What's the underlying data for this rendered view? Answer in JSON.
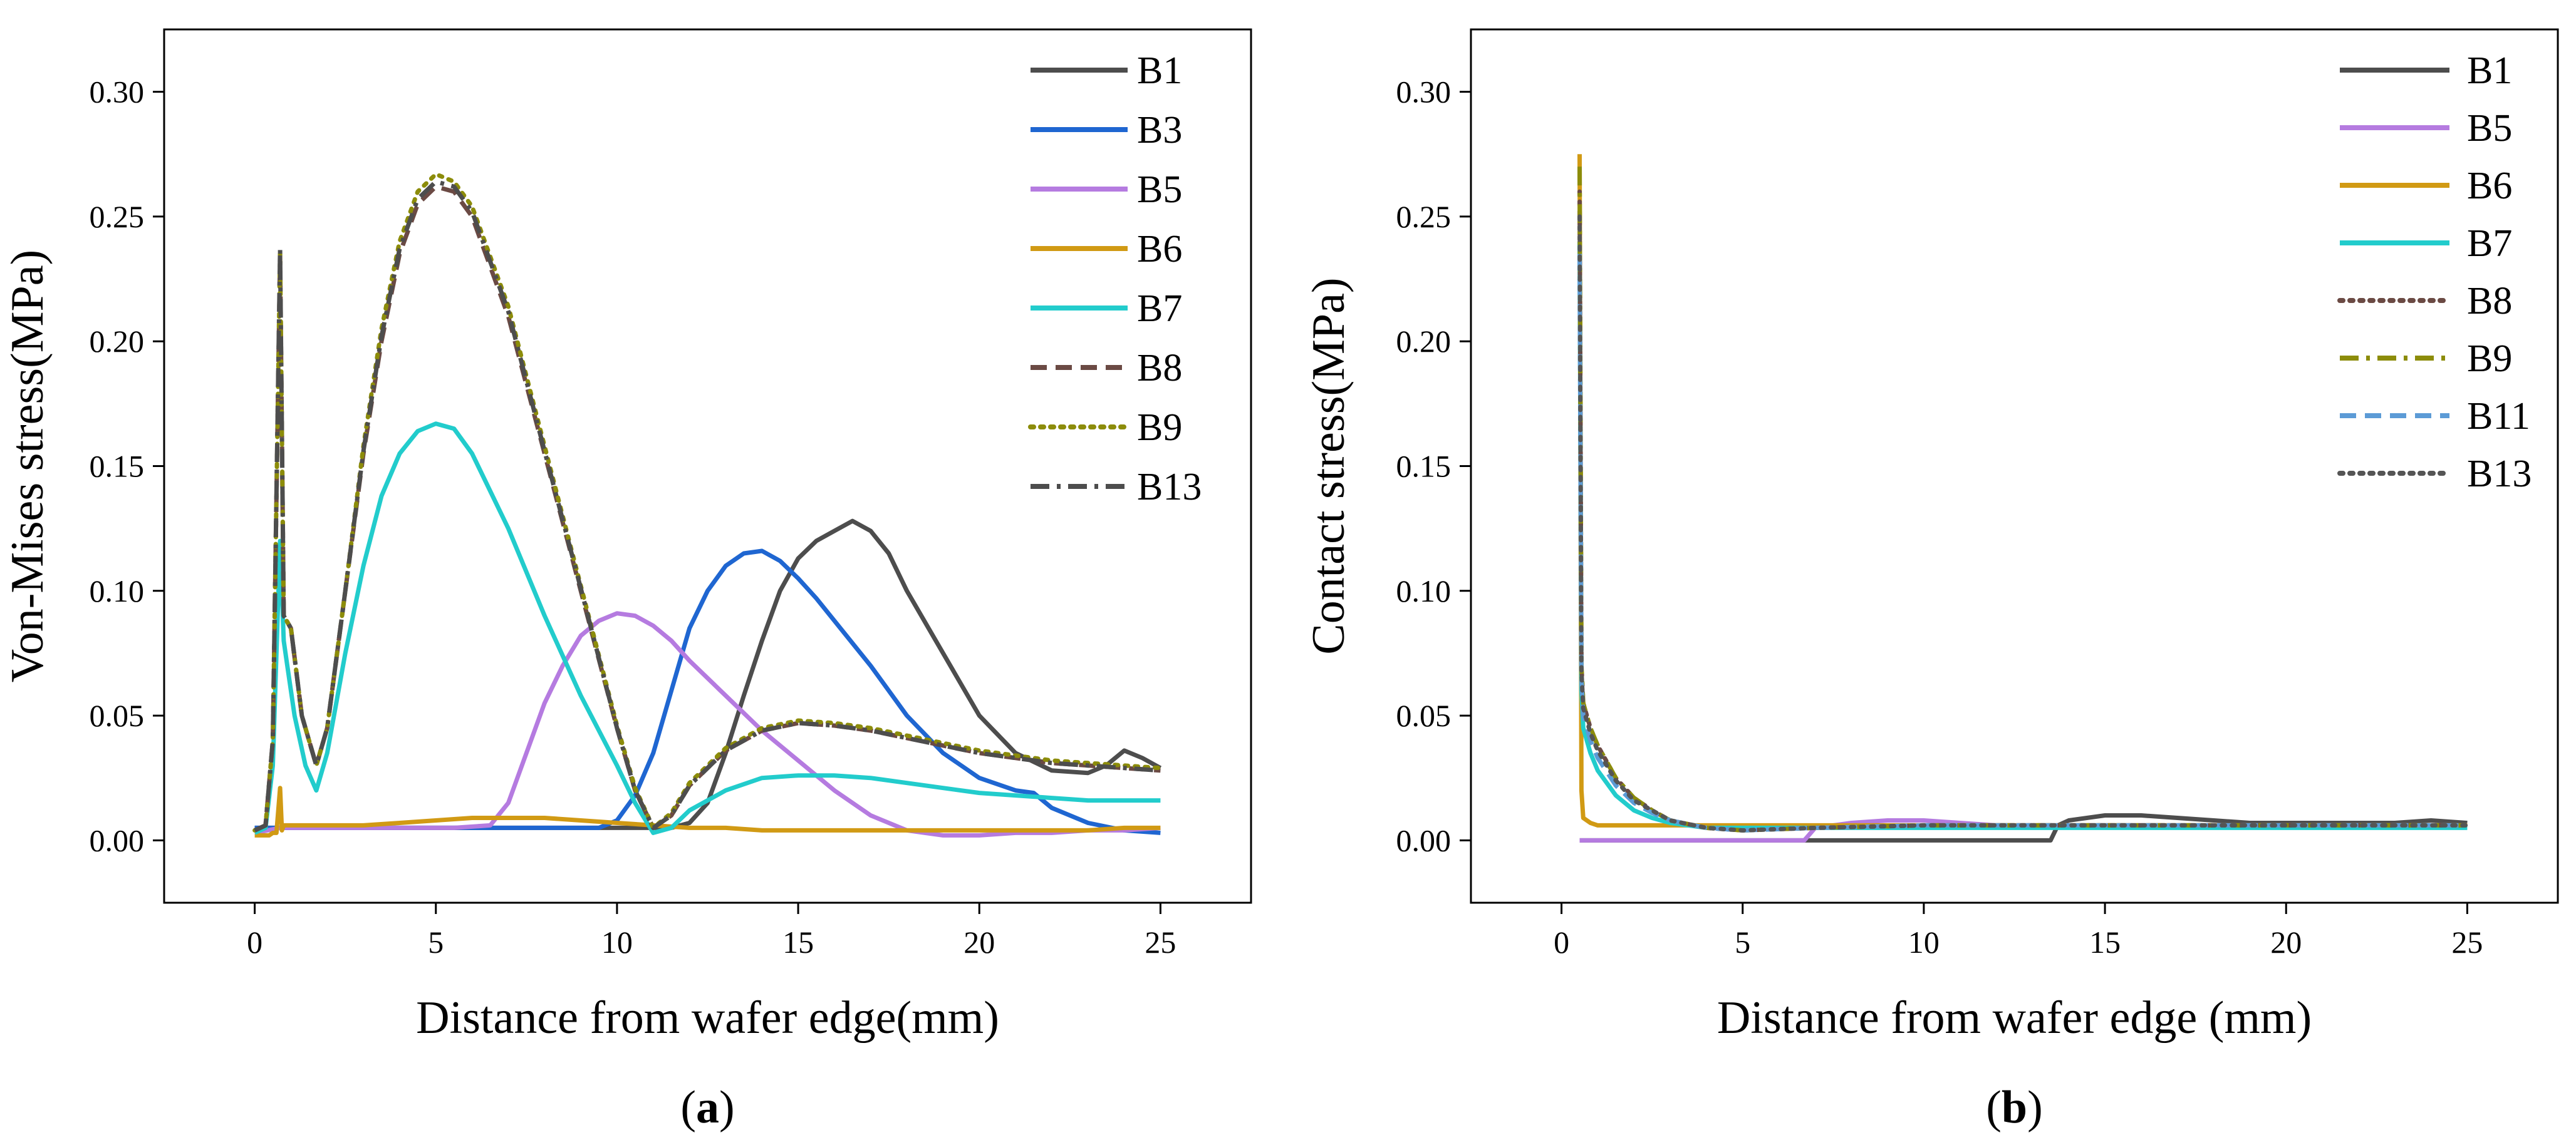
{
  "colors": {
    "B1": "#4d4d4d",
    "B3": "#1f66d1",
    "B5": "#b57be0",
    "B6": "#d19a14",
    "B7": "#22cccc",
    "B8": "#6b4a44",
    "B9": "#8c8c0a",
    "B11": "#5c9bd6",
    "B13_a": "#4d4d4d",
    "B13_b": "#555555"
  },
  "chart_data": [
    {
      "type": "line",
      "panel_label_parts": [
        "(",
        "a",
        ")"
      ],
      "xlabel": "Distance from wafer edge(mm)",
      "ylabel": "Von-Mises stress(MPa)",
      "xlim": [
        -2.5,
        27.5
      ],
      "ylim": [
        -0.025,
        0.325
      ],
      "xticks": [
        0,
        5,
        10,
        15,
        20,
        25
      ],
      "xtick_labels": [
        "0",
        "5",
        "10",
        "15",
        "20",
        "25"
      ],
      "yticks": [
        0,
        0.05,
        0.1,
        0.15,
        0.2,
        0.25,
        0.3
      ],
      "ytick_labels": [
        "0.00",
        "0.05",
        "0.10",
        "0.15",
        "0.20",
        "0.25",
        "0.30"
      ],
      "grid": false,
      "legend_position": "top-right",
      "series": [
        {
          "name": "B1",
          "color_key": "B1",
          "dash": "solid",
          "x": [
            0,
            0.6,
            2,
            5,
            8,
            10,
            11.5,
            12,
            12.5,
            13,
            13.5,
            14,
            14.5,
            15,
            15.5,
            16,
            16.5,
            17,
            17.5,
            18,
            19,
            20,
            21,
            22,
            23,
            23.5,
            24,
            24.5,
            25
          ],
          "y": [
            0.005,
            0.005,
            0.005,
            0.005,
            0.005,
            0.005,
            0.005,
            0.007,
            0.015,
            0.035,
            0.058,
            0.08,
            0.1,
            0.113,
            0.12,
            0.124,
            0.128,
            0.124,
            0.115,
            0.1,
            0.075,
            0.05,
            0.035,
            0.028,
            0.027,
            0.03,
            0.036,
            0.033,
            0.029
          ]
        },
        {
          "name": "B3",
          "color_key": "B3",
          "dash": "solid",
          "x": [
            0,
            0.7,
            2,
            5,
            8,
            9.5,
            10,
            10.5,
            11,
            11.5,
            12,
            12.5,
            13,
            13.5,
            14,
            14.5,
            15,
            15.5,
            16,
            17,
            18,
            19,
            20,
            21,
            21.5,
            22,
            23,
            24,
            25
          ],
          "y": [
            0.005,
            0.005,
            0.005,
            0.005,
            0.005,
            0.005,
            0.008,
            0.018,
            0.035,
            0.06,
            0.085,
            0.1,
            0.11,
            0.115,
            0.116,
            0.112,
            0.105,
            0.097,
            0.088,
            0.07,
            0.05,
            0.035,
            0.025,
            0.02,
            0.019,
            0.013,
            0.007,
            0.004,
            0.003
          ]
        },
        {
          "name": "B5",
          "color_key": "B5",
          "dash": "solid",
          "x": [
            0,
            0.7,
            2,
            4,
            5.5,
            6.5,
            7,
            7.5,
            8,
            8.5,
            9,
            9.5,
            10,
            10.5,
            11,
            11.5,
            12,
            13,
            14,
            15,
            16,
            17,
            18,
            19,
            20,
            21,
            22,
            23,
            24,
            25
          ],
          "y": [
            0.003,
            0.005,
            0.005,
            0.005,
            0.005,
            0.006,
            0.015,
            0.035,
            0.055,
            0.07,
            0.082,
            0.088,
            0.091,
            0.09,
            0.086,
            0.08,
            0.072,
            0.058,
            0.044,
            0.032,
            0.02,
            0.01,
            0.004,
            0.002,
            0.002,
            0.003,
            0.003,
            0.004,
            0.004,
            0.005
          ]
        },
        {
          "name": "B6",
          "color_key": "B6",
          "dash": "solid",
          "x": [
            0,
            0.4,
            0.5,
            0.6,
            0.7,
            0.75,
            0.8,
            1,
            2,
            3,
            4,
            5,
            6,
            7,
            8,
            9,
            10,
            11,
            12,
            13,
            14,
            15,
            16,
            17,
            18,
            19,
            20,
            21,
            22,
            23,
            24,
            25
          ],
          "y": [
            0.002,
            0.002,
            0.003,
            0.003,
            0.021,
            0.004,
            0.006,
            0.006,
            0.006,
            0.006,
            0.007,
            0.008,
            0.009,
            0.009,
            0.009,
            0.008,
            0.007,
            0.006,
            0.005,
            0.005,
            0.004,
            0.004,
            0.004,
            0.004,
            0.004,
            0.004,
            0.004,
            0.004,
            0.004,
            0.004,
            0.005,
            0.005
          ]
        },
        {
          "name": "B7",
          "color_key": "B7",
          "dash": "solid",
          "x": [
            0,
            0.3,
            0.5,
            0.7,
            0.8,
            0.9,
            1.1,
            1.4,
            1.7,
            2,
            2.5,
            3,
            3.5,
            4,
            4.5,
            5,
            5.5,
            6,
            7,
            8,
            9,
            10,
            10.5,
            11,
            11.5,
            12,
            13,
            14,
            15,
            16,
            17,
            18,
            19,
            20,
            21,
            22,
            23,
            24,
            25
          ],
          "y": [
            0.003,
            0.005,
            0.03,
            0.12,
            0.08,
            0.07,
            0.05,
            0.03,
            0.02,
            0.035,
            0.075,
            0.11,
            0.138,
            0.155,
            0.164,
            0.167,
            0.165,
            0.155,
            0.125,
            0.09,
            0.058,
            0.03,
            0.015,
            0.003,
            0.005,
            0.012,
            0.02,
            0.025,
            0.026,
            0.026,
            0.025,
            0.023,
            0.021,
            0.019,
            0.018,
            0.017,
            0.016,
            0.016,
            0.016
          ]
        },
        {
          "name": "B8",
          "color_key": "B8",
          "dash": "dashed",
          "x": [
            0,
            0.3,
            0.5,
            0.7,
            0.8,
            1,
            1.3,
            1.7,
            2,
            2.5,
            3,
            3.5,
            4,
            4.5,
            5,
            5.5,
            6,
            7,
            8,
            9,
            10,
            10.5,
            11,
            11.5,
            12,
            13,
            14,
            15,
            16,
            17,
            18,
            19,
            20,
            21,
            22,
            23,
            24,
            25
          ],
          "y": [
            0.004,
            0.006,
            0.04,
            0.235,
            0.09,
            0.085,
            0.05,
            0.03,
            0.045,
            0.1,
            0.155,
            0.2,
            0.235,
            0.255,
            0.262,
            0.26,
            0.25,
            0.21,
            0.155,
            0.1,
            0.045,
            0.02,
            0.005,
            0.01,
            0.022,
            0.036,
            0.044,
            0.047,
            0.046,
            0.044,
            0.041,
            0.038,
            0.035,
            0.033,
            0.031,
            0.03,
            0.029,
            0.028
          ]
        },
        {
          "name": "B9",
          "color_key": "B9",
          "dash": "dotted",
          "x": [
            0,
            0.3,
            0.5,
            0.7,
            0.8,
            1,
            1.3,
            1.7,
            2,
            2.5,
            3,
            3.5,
            4,
            4.5,
            5,
            5.5,
            6,
            7,
            8,
            9,
            10,
            10.5,
            11,
            11.5,
            12,
            13,
            14,
            15,
            16,
            17,
            18,
            19,
            20,
            21,
            22,
            23,
            24,
            25
          ],
          "y": [
            0.004,
            0.006,
            0.04,
            0.235,
            0.09,
            0.085,
            0.05,
            0.03,
            0.045,
            0.1,
            0.158,
            0.205,
            0.24,
            0.26,
            0.267,
            0.264,
            0.254,
            0.214,
            0.158,
            0.102,
            0.046,
            0.021,
            0.005,
            0.011,
            0.023,
            0.037,
            0.045,
            0.048,
            0.047,
            0.045,
            0.042,
            0.039,
            0.036,
            0.034,
            0.032,
            0.031,
            0.03,
            0.029
          ]
        },
        {
          "name": "B13",
          "color_key": "B13_a",
          "dash": "dashdot",
          "x": [
            0,
            0.3,
            0.5,
            0.7,
            0.8,
            1,
            1.3,
            1.7,
            2,
            2.5,
            3,
            3.5,
            4,
            4.5,
            5,
            5.5,
            6,
            7,
            8,
            9,
            10,
            10.5,
            11,
            11.5,
            12,
            13,
            14,
            15,
            16,
            17,
            18,
            19,
            20,
            21,
            22,
            23,
            24,
            25
          ],
          "y": [
            0.004,
            0.006,
            0.04,
            0.237,
            0.09,
            0.085,
            0.05,
            0.03,
            0.045,
            0.1,
            0.156,
            0.202,
            0.237,
            0.257,
            0.264,
            0.262,
            0.252,
            0.212,
            0.156,
            0.101,
            0.045,
            0.02,
            0.005,
            0.01,
            0.022,
            0.036,
            0.044,
            0.047,
            0.046,
            0.044,
            0.041,
            0.038,
            0.035,
            0.033,
            0.031,
            0.03,
            0.029,
            0.028
          ]
        }
      ]
    },
    {
      "type": "line",
      "panel_label_parts": [
        "(",
        "b",
        ")"
      ],
      "xlabel": "Distance from wafer edge (mm)",
      "ylabel": "Contact stress(MPa)",
      "xlim": [
        -2.5,
        27.5
      ],
      "ylim": [
        -0.025,
        0.325
      ],
      "xticks": [
        0,
        5,
        10,
        15,
        20,
        25
      ],
      "xtick_labels": [
        "0",
        "5",
        "10",
        "15",
        "20",
        "25"
      ],
      "yticks": [
        0,
        0.05,
        0.1,
        0.15,
        0.2,
        0.25,
        0.3
      ],
      "ytick_labels": [
        "0.00",
        "0.05",
        "0.10",
        "0.15",
        "0.20",
        "0.25",
        "0.30"
      ],
      "grid": false,
      "legend_position": "top-right",
      "series": [
        {
          "name": "B1",
          "color_key": "B1",
          "dash": "solid",
          "x": [
            0.5,
            6.8,
            7,
            13.5,
            13.7,
            14,
            15,
            16,
            17,
            18,
            19,
            20,
            21,
            22,
            23,
            24,
            25
          ],
          "y": [
            0,
            0,
            0,
            0,
            0.006,
            0.008,
            0.01,
            0.01,
            0.009,
            0.008,
            0.007,
            0.007,
            0.007,
            0.007,
            0.007,
            0.008,
            0.007
          ]
        },
        {
          "name": "B5",
          "color_key": "B5",
          "dash": "solid",
          "x": [
            0.5,
            5,
            6.7,
            7,
            8,
            9,
            10,
            11,
            12,
            15,
            20,
            25
          ],
          "y": [
            0,
            0,
            0,
            0.005,
            0.007,
            0.008,
            0.008,
            0.007,
            0.006,
            0.006,
            0.006,
            0.006
          ]
        },
        {
          "name": "B6",
          "color_key": "B6",
          "dash": "solid",
          "x": [
            0.5,
            0.55,
            0.6,
            0.8,
            1,
            2,
            5,
            10,
            15,
            20,
            25
          ],
          "y": [
            0.275,
            0.02,
            0.009,
            0.007,
            0.006,
            0.006,
            0.006,
            0.006,
            0.006,
            0.006,
            0.006
          ]
        },
        {
          "name": "B7",
          "color_key": "B7",
          "dash": "solid",
          "x": [
            0.5,
            0.55,
            0.6,
            0.8,
            1,
            1.5,
            2,
            2.5,
            3,
            4,
            5,
            7,
            10,
            15,
            20,
            25
          ],
          "y": [
            0.24,
            0.06,
            0.045,
            0.035,
            0.028,
            0.018,
            0.012,
            0.009,
            0.007,
            0.005,
            0.005,
            0.005,
            0.005,
            0.005,
            0.005,
            0.005
          ]
        },
        {
          "name": "B8",
          "color_key": "B8",
          "dash": "dotted",
          "x": [
            0.5,
            0.55,
            0.6,
            0.8,
            1,
            1.5,
            2,
            2.5,
            3,
            4,
            5,
            7,
            10,
            15,
            20,
            25
          ],
          "y": [
            0.26,
            0.07,
            0.055,
            0.045,
            0.038,
            0.025,
            0.017,
            0.012,
            0.008,
            0.005,
            0.004,
            0.005,
            0.006,
            0.006,
            0.006,
            0.006
          ]
        },
        {
          "name": "B9",
          "color_key": "B9",
          "dash": "dashdot",
          "x": [
            0.5,
            0.55,
            0.6,
            0.8,
            1,
            1.5,
            2,
            2.5,
            3,
            4,
            5,
            7,
            10,
            15,
            20,
            25
          ],
          "y": [
            0.27,
            0.07,
            0.055,
            0.045,
            0.038,
            0.025,
            0.017,
            0.012,
            0.008,
            0.005,
            0.004,
            0.005,
            0.006,
            0.006,
            0.006,
            0.006
          ]
        },
        {
          "name": "B11",
          "color_key": "B11",
          "dash": "dashed",
          "x": [
            0.5,
            0.55,
            0.6,
            0.8,
            1,
            1.5,
            2,
            2.5,
            3,
            4,
            5,
            7,
            10,
            15,
            20,
            25
          ],
          "y": [
            0.235,
            0.065,
            0.05,
            0.04,
            0.033,
            0.022,
            0.015,
            0.011,
            0.008,
            0.005,
            0.004,
            0.005,
            0.006,
            0.006,
            0.006,
            0.006
          ]
        },
        {
          "name": "B13",
          "color_key": "B13_b",
          "dash": "dotted",
          "x": [
            0.5,
            0.55,
            0.6,
            0.8,
            1,
            1.5,
            2,
            2.5,
            3,
            4,
            5,
            7,
            10,
            15,
            20,
            25
          ],
          "y": [
            0.25,
            0.068,
            0.053,
            0.043,
            0.036,
            0.024,
            0.016,
            0.012,
            0.008,
            0.005,
            0.004,
            0.005,
            0.006,
            0.006,
            0.006,
            0.006
          ]
        }
      ]
    }
  ]
}
